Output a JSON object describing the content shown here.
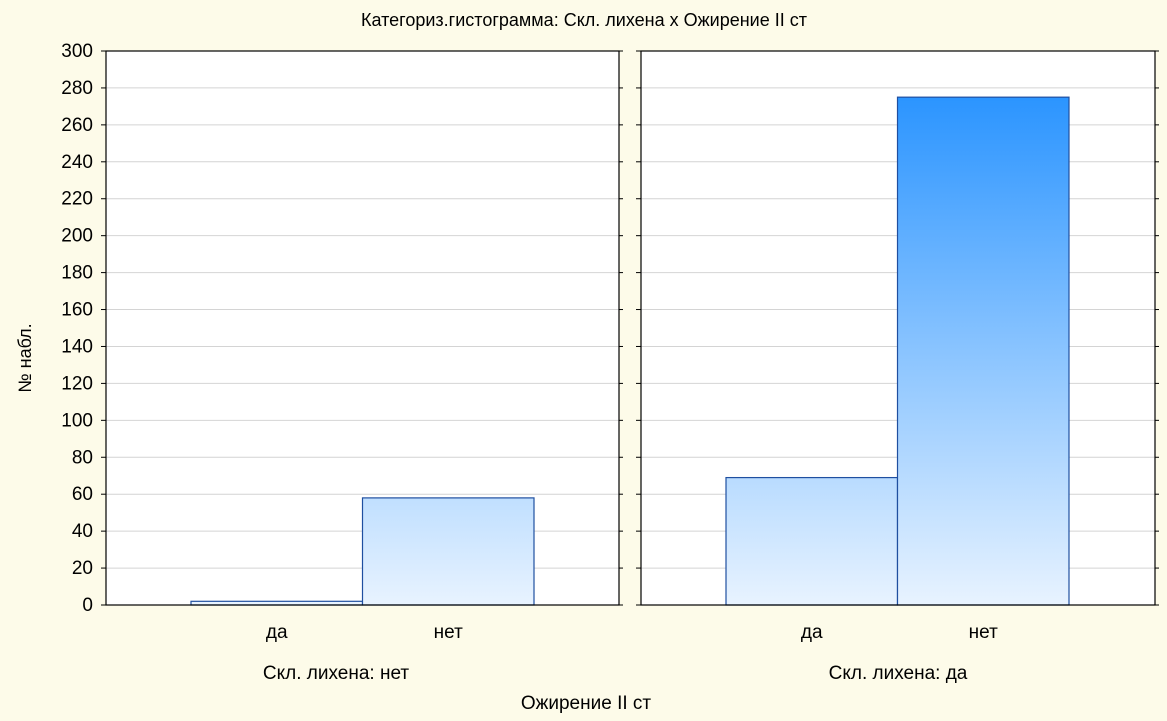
{
  "chart_data": {
    "type": "bar",
    "title": "Категориз.гистограмма: Скл. лихена x Ожирение II ст",
    "xlabel": "Ожирение II ст",
    "ylabel": "№ набл.",
    "ylim": [
      0,
      300
    ],
    "yticks": [
      0,
      20,
      40,
      60,
      80,
      100,
      120,
      140,
      160,
      180,
      200,
      220,
      240,
      260,
      280,
      300
    ],
    "grid": true,
    "bar_gradient": {
      "top_color": "#1a8cff",
      "bottom_color": "#e8f3ff",
      "stroke": "#1f4fa0"
    },
    "panels": [
      {
        "label": "Скл. лихена: нет",
        "categories": [
          "да",
          "нет"
        ],
        "values": [
          2,
          58
        ]
      },
      {
        "label": "Скл. лихена: да",
        "categories": [
          "да",
          "нет"
        ],
        "values": [
          69,
          275
        ]
      }
    ]
  }
}
